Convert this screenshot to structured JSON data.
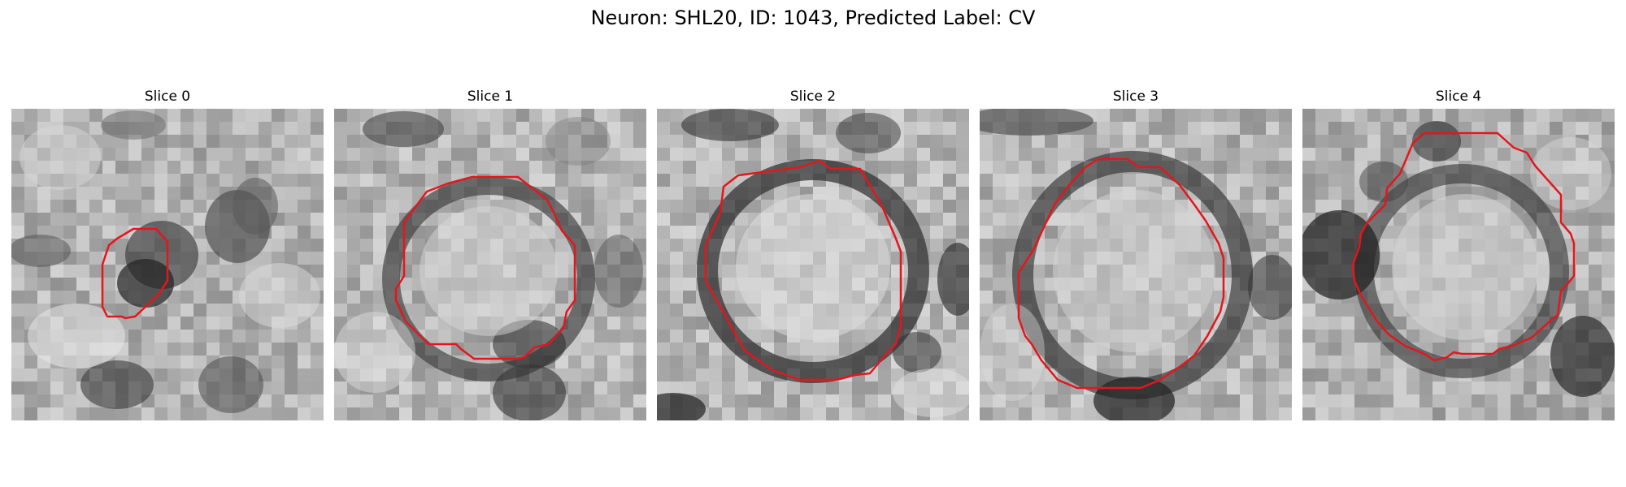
{
  "figure": {
    "title": "Neuron: SHL20, ID: 1043, Predicted Label: CV"
  },
  "colors": {
    "contour": "#e4161d",
    "background": "#ffffff"
  },
  "panels": [
    {
      "title": "Slice 0"
    },
    {
      "title": "Slice 1"
    },
    {
      "title": "Slice 2"
    },
    {
      "title": "Slice 3"
    },
    {
      "title": "Slice 4"
    }
  ]
}
